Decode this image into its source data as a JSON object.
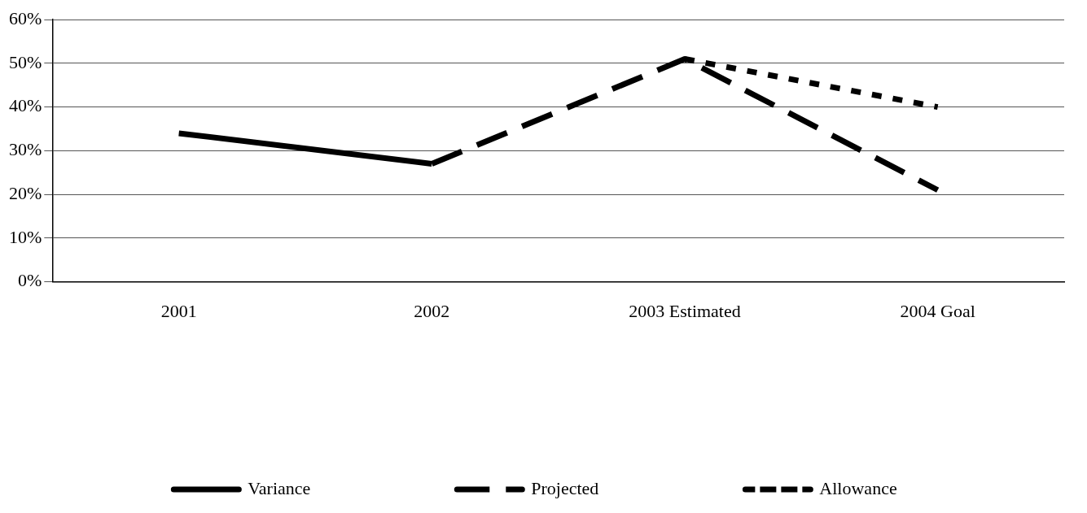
{
  "chart_data": {
    "type": "line",
    "categories": [
      "2001",
      "2002",
      "2003 Estimated",
      "2004 Goal"
    ],
    "series": [
      {
        "name": "Variance",
        "color": "#000000",
        "values": [
          34,
          27,
          null,
          null
        ],
        "line_style": "solid"
      },
      {
        "name": "Projected",
        "color": "#000000",
        "values": [
          null,
          27,
          51,
          21
        ],
        "line_style": "dashed"
      },
      {
        "name": "Allowance",
        "color": "#000000",
        "values": [
          null,
          null,
          51,
          40
        ],
        "line_style": "dotted"
      }
    ],
    "ylim": [
      0,
      60
    ],
    "yticks": [
      {
        "value": 0,
        "label": "0%"
      },
      {
        "value": 10,
        "label": "10%"
      },
      {
        "value": 20,
        "label": "20%"
      },
      {
        "value": 30,
        "label": "30%"
      },
      {
        "value": 40,
        "label": "40%"
      },
      {
        "value": 50,
        "label": "50%"
      },
      {
        "value": 60,
        "label": "60%"
      }
    ],
    "grid": "y",
    "legend": "bottom",
    "marker": "none"
  }
}
